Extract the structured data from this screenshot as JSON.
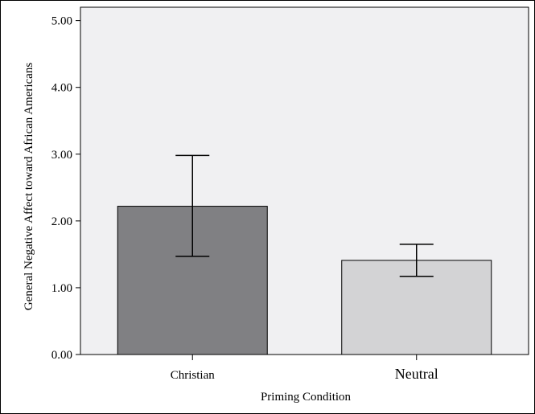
{
  "chart_data": {
    "type": "bar",
    "categories": [
      "Christian",
      "Neutral"
    ],
    "values": [
      2.22,
      1.41
    ],
    "error_bars": [
      {
        "low": 1.47,
        "high": 2.98
      },
      {
        "low": 1.17,
        "high": 1.65
      }
    ],
    "xlabel": "Priming Condition",
    "ylabel": "General Negative Affect toward African Americans",
    "ylim": [
      0,
      5
    ],
    "yticks": [
      "0.00",
      "1.00",
      "2.00",
      "3.00",
      "4.00",
      "5.00"
    ],
    "grid": false,
    "legend": "none"
  },
  "colors": {
    "plot_background": "#f0f0f2",
    "bar_fill": [
      "#808083",
      "#d3d3d5"
    ],
    "bar_stroke": "#000000",
    "error_bar": "#000000"
  }
}
